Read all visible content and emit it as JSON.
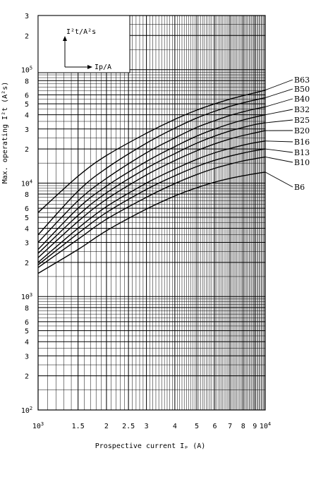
{
  "chart_data": {
    "type": "line",
    "title": "",
    "xlabel": "Prospective current Iₚ (A)",
    "ylabel": "Max. operating I²t (A²s)",
    "x_scale": "log",
    "y_scale": "log",
    "xlim": [
      1000,
      10000
    ],
    "ylim": [
      100,
      300000
    ],
    "grid": true,
    "x_tick_labels": [
      {
        "value": 1000,
        "base": "10",
        "exp": "3"
      },
      {
        "value": 1500,
        "base": "1.5",
        "exp": ""
      },
      {
        "value": 2000,
        "base": "2",
        "exp": ""
      },
      {
        "value": 2500,
        "base": "2.5",
        "exp": ""
      },
      {
        "value": 3000,
        "base": "3",
        "exp": ""
      },
      {
        "value": 4000,
        "base": "4",
        "exp": ""
      },
      {
        "value": 5000,
        "base": "5",
        "exp": ""
      },
      {
        "value": 6000,
        "base": "6",
        "exp": ""
      },
      {
        "value": 7000,
        "base": "7",
        "exp": ""
      },
      {
        "value": 8000,
        "base": "8",
        "exp": ""
      },
      {
        "value": 9000,
        "base": "9",
        "exp": ""
      },
      {
        "value": 10000,
        "base": "10",
        "exp": "4"
      }
    ],
    "y_tick_labels": [
      {
        "value": 100,
        "base": "10",
        "exp": "2"
      },
      {
        "value": 200,
        "base": "2",
        "exp": ""
      },
      {
        "value": 300,
        "base": "3",
        "exp": ""
      },
      {
        "value": 400,
        "base": "4",
        "exp": ""
      },
      {
        "value": 500,
        "base": "5",
        "exp": ""
      },
      {
        "value": 600,
        "base": "6",
        "exp": ""
      },
      {
        "value": 800,
        "base": "8",
        "exp": ""
      },
      {
        "value": 1000,
        "base": "10",
        "exp": "3"
      },
      {
        "value": 2000,
        "base": "2",
        "exp": ""
      },
      {
        "value": 3000,
        "base": "3",
        "exp": ""
      },
      {
        "value": 4000,
        "base": "4",
        "exp": ""
      },
      {
        "value": 5000,
        "base": "5",
        "exp": ""
      },
      {
        "value": 6000,
        "base": "6",
        "exp": ""
      },
      {
        "value": 8000,
        "base": "8",
        "exp": ""
      },
      {
        "value": 10000,
        "base": "10",
        "exp": "4"
      },
      {
        "value": 20000,
        "base": "2",
        "exp": ""
      },
      {
        "value": 30000,
        "base": "3",
        "exp": ""
      },
      {
        "value": 40000,
        "base": "4",
        "exp": ""
      },
      {
        "value": 50000,
        "base": "5",
        "exp": ""
      },
      {
        "value": 60000,
        "base": "6",
        "exp": ""
      },
      {
        "value": 80000,
        "base": "8",
        "exp": ""
      },
      {
        "value": 100000,
        "base": "10",
        "exp": "5"
      },
      {
        "value": 200000,
        "base": "2",
        "exp": ""
      },
      {
        "value": 300000,
        "base": "3",
        "exp": ""
      }
    ],
    "inset": {
      "y_label": "I²t/A²s",
      "x_label": "Ip/A"
    },
    "x": [
      1000,
      1500,
      2000,
      3000,
      4000,
      5000,
      6000,
      7000,
      8000,
      9000,
      10000
    ],
    "series": [
      {
        "name": "B63",
        "values": [
          5500,
          11500,
          17500,
          27500,
          36500,
          44000,
          50000,
          55000,
          59000,
          62500,
          66000
        ]
      },
      {
        "name": "B50",
        "values": [
          3500,
          8500,
          13500,
          22500,
          30500,
          37500,
          43000,
          47500,
          51000,
          54000,
          56500
        ]
      },
      {
        "name": "B40",
        "values": [
          3000,
          7000,
          11000,
          18500,
          25000,
          31000,
          35500,
          39500,
          42500,
          45000,
          47000
        ]
      },
      {
        "name": "B32",
        "values": [
          2600,
          6000,
          9400,
          15500,
          21000,
          26000,
          30000,
          33300,
          36000,
          38200,
          40000
        ]
      },
      {
        "name": "B25",
        "values": [
          2400,
          5200,
          8200,
          13500,
          18200,
          22500,
          26000,
          28800,
          31000,
          32800,
          34000
        ]
      },
      {
        "name": "B20",
        "values": [
          2200,
          4600,
          7200,
          11800,
          15800,
          19300,
          22200,
          24500,
          26300,
          27700,
          29000
        ]
      },
      {
        "name": "B16",
        "values": [
          2000,
          4000,
          6200,
          10000,
          13300,
          16200,
          18500,
          20200,
          21600,
          22700,
          23500
        ]
      },
      {
        "name": "B13",
        "values": [
          1900,
          3600,
          5500,
          8800,
          11600,
          14000,
          15900,
          17300,
          18400,
          19300,
          20000
        ]
      },
      {
        "name": "B10",
        "values": [
          1800,
          3200,
          4800,
          7500,
          9900,
          11900,
          13500,
          14700,
          15700,
          16400,
          17000
        ]
      },
      {
        "name": "B6",
        "values": [
          1600,
          2600,
          3800,
          5900,
          7700,
          9100,
          10200,
          11000,
          11600,
          12100,
          12500
        ]
      }
    ]
  }
}
